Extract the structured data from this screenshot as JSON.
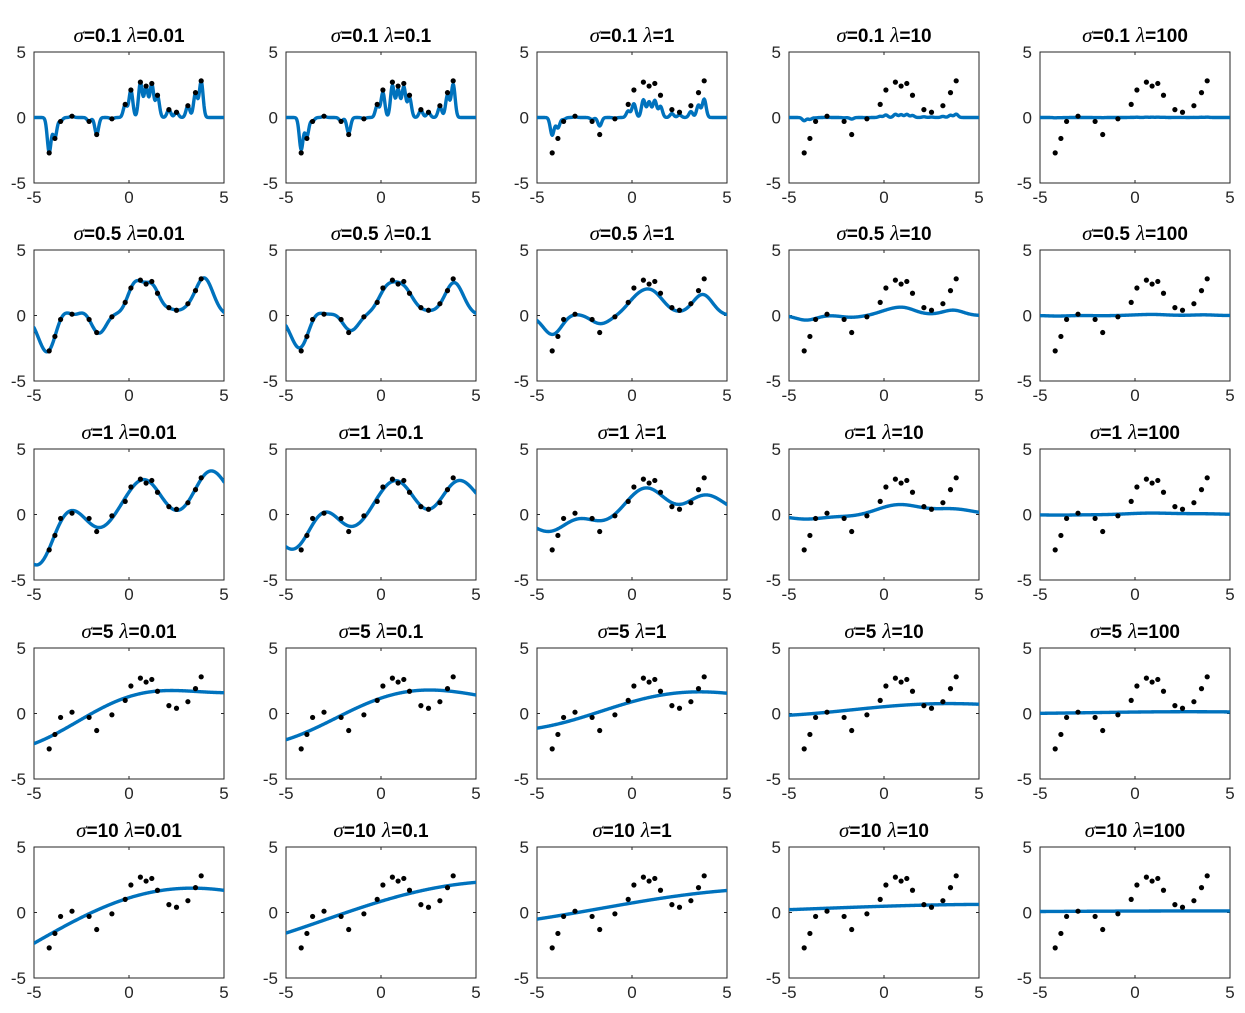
{
  "chart_data": {
    "type": "line",
    "layout": {
      "rows": 5,
      "cols": 5
    },
    "xlim": [
      -5,
      5
    ],
    "ylim": [
      -5,
      5
    ],
    "xticks": [
      -5,
      0,
      5
    ],
    "yticks": [
      -5,
      0,
      5
    ],
    "grid": false,
    "colors": {
      "fit_line": "#0072BD",
      "points": "#000000"
    },
    "sigmas": [
      "0.1",
      "0.5",
      "1",
      "5",
      "10"
    ],
    "lambdas": [
      "0.01",
      "0.1",
      "1",
      "10",
      "100"
    ],
    "points": {
      "x": [
        -4.2,
        -3.9,
        -3.6,
        -3.0,
        -2.1,
        -1.7,
        -0.9,
        -0.2,
        0.1,
        0.6,
        0.9,
        1.2,
        1.5,
        2.1,
        2.5,
        3.1,
        3.5,
        3.8
      ],
      "y": [
        -2.7,
        -1.6,
        -0.3,
        0.1,
        -0.3,
        -1.3,
        -0.1,
        1.0,
        2.1,
        2.7,
        2.4,
        2.6,
        1.7,
        0.6,
        0.4,
        0.9,
        1.9,
        2.8
      ]
    },
    "subplots": [
      {
        "title_prefix": "σ",
        "sigma": "=0.1",
        "title_mid": "λ",
        "lambda": "=0.01"
      },
      {
        "title_prefix": "σ",
        "sigma": "=0.1",
        "title_mid": "λ",
        "lambda": "=0.1"
      },
      {
        "title_prefix": "σ",
        "sigma": "=0.1",
        "title_mid": "λ",
        "lambda": "=1"
      },
      {
        "title_prefix": "σ",
        "sigma": "=0.1",
        "title_mid": "λ",
        "lambda": "=10"
      },
      {
        "title_prefix": "σ",
        "sigma": "=0.1",
        "title_mid": "λ",
        "lambda": "=100"
      },
      {
        "title_prefix": "σ",
        "sigma": "=0.5",
        "title_mid": "λ",
        "lambda": "=0.01"
      },
      {
        "title_prefix": "σ",
        "sigma": "=0.5",
        "title_mid": "λ",
        "lambda": "=0.1"
      },
      {
        "title_prefix": "σ",
        "sigma": "=0.5",
        "title_mid": "λ",
        "lambda": "=1"
      },
      {
        "title_prefix": "σ",
        "sigma": "=0.5",
        "title_mid": "λ",
        "lambda": "=10"
      },
      {
        "title_prefix": "σ",
        "sigma": "=0.5",
        "title_mid": "λ",
        "lambda": "=100"
      },
      {
        "title_prefix": "σ",
        "sigma": "=1",
        "title_mid": "λ",
        "lambda": "=0.01"
      },
      {
        "title_prefix": "σ",
        "sigma": "=1",
        "title_mid": "λ",
        "lambda": "=0.1"
      },
      {
        "title_prefix": "σ",
        "sigma": "=1",
        "title_mid": "λ",
        "lambda": "=1"
      },
      {
        "title_prefix": "σ",
        "sigma": "=1",
        "title_mid": "λ",
        "lambda": "=10"
      },
      {
        "title_prefix": "σ",
        "sigma": "=1",
        "title_mid": "λ",
        "lambda": "=100"
      },
      {
        "title_prefix": "σ",
        "sigma": "=5",
        "title_mid": "λ",
        "lambda": "=0.01"
      },
      {
        "title_prefix": "σ",
        "sigma": "=5",
        "title_mid": "λ",
        "lambda": "=0.1"
      },
      {
        "title_prefix": "σ",
        "sigma": "=5",
        "title_mid": "λ",
        "lambda": "=1"
      },
      {
        "title_prefix": "σ",
        "sigma": "=5",
        "title_mid": "λ",
        "lambda": "=10"
      },
      {
        "title_prefix": "σ",
        "sigma": "=5",
        "title_mid": "λ",
        "lambda": "=100"
      },
      {
        "title_prefix": "σ",
        "sigma": "=10",
        "title_mid": "λ",
        "lambda": "=0.01"
      },
      {
        "title_prefix": "σ",
        "sigma": "=10",
        "title_mid": "λ",
        "lambda": "=0.1"
      },
      {
        "title_prefix": "σ",
        "sigma": "=10",
        "title_mid": "λ",
        "lambda": "=1"
      },
      {
        "title_prefix": "σ",
        "sigma": "=10",
        "title_mid": "λ",
        "lambda": "=10"
      },
      {
        "title_prefix": "σ",
        "sigma": "=10",
        "title_mid": "λ",
        "lambda": "=100"
      }
    ]
  }
}
